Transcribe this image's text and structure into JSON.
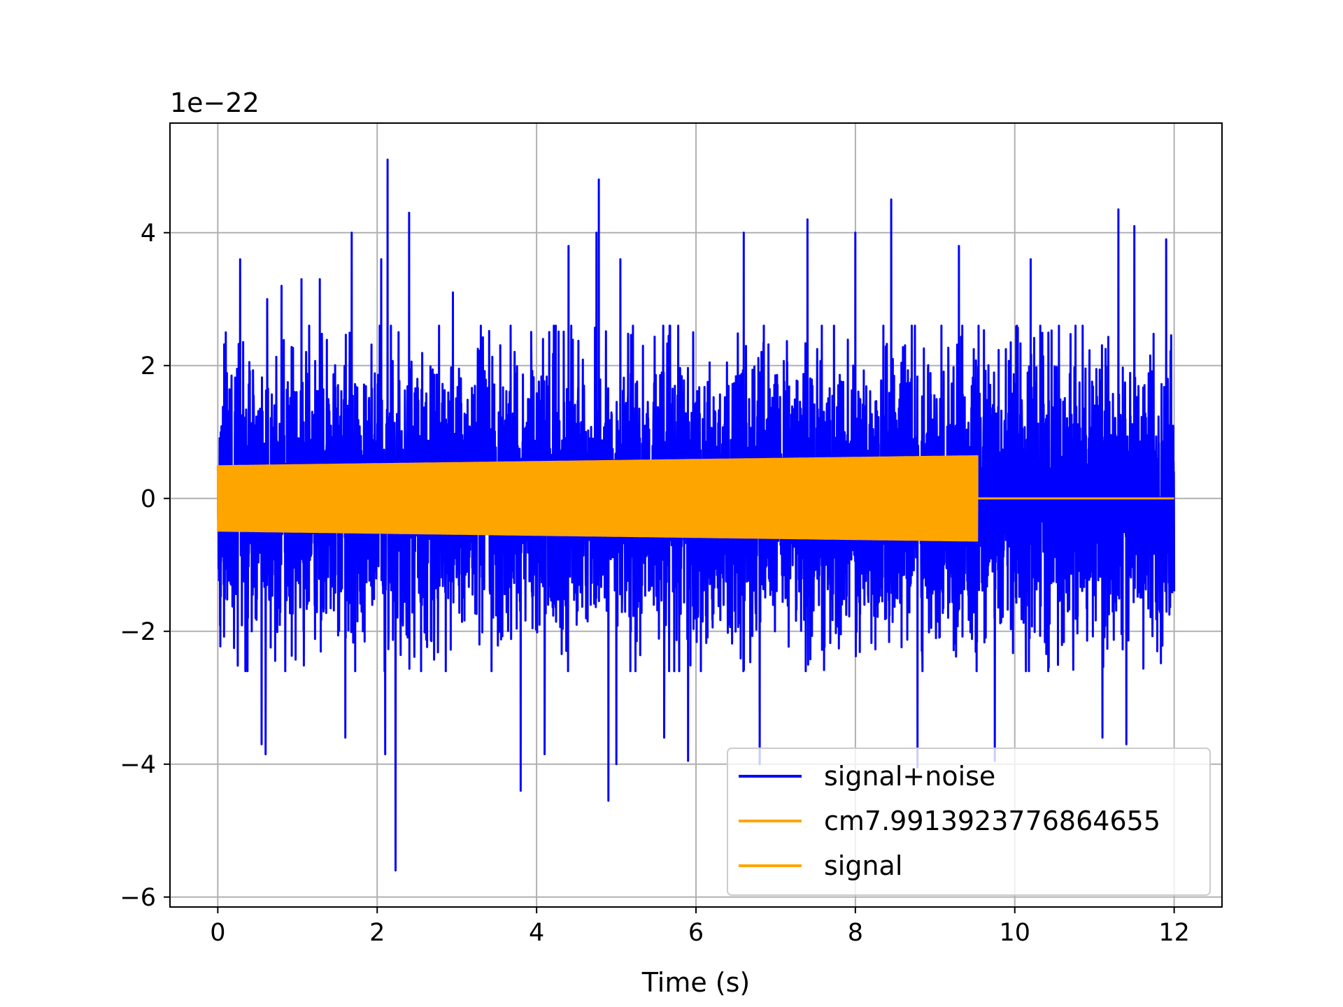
{
  "chart_data": {
    "type": "line",
    "title": "",
    "xlabel": "Time (s)",
    "ylabel": "",
    "y_offset_label": "1e−22",
    "xlim": [
      -0.6,
      12.6
    ],
    "ylim": [
      -6.15,
      5.65
    ],
    "x_ticks": [
      0,
      2,
      4,
      6,
      8,
      10,
      12
    ],
    "x_tick_labels": [
      "0",
      "2",
      "4",
      "6",
      "8",
      "10",
      "12"
    ],
    "y_ticks": [
      -6,
      -4,
      -2,
      0,
      2,
      4
    ],
    "y_tick_labels": [
      "−6",
      "−4",
      "−2",
      "0",
      "2",
      "4"
    ],
    "grid": true,
    "legend_position": "lower right",
    "series": [
      {
        "name": "signal+noise",
        "color": "#0000ff",
        "x_range": [
          0,
          12
        ],
        "noise_std": 1.0,
        "upper_envelope_peaks": [
          {
            "x": 0.1,
            "y": 2.5
          },
          {
            "x": 0.28,
            "y": 3.6
          },
          {
            "x": 0.62,
            "y": 3.0
          },
          {
            "x": 0.8,
            "y": 3.2
          },
          {
            "x": 1.05,
            "y": 3.3
          },
          {
            "x": 1.28,
            "y": 3.3
          },
          {
            "x": 1.68,
            "y": 4.0
          },
          {
            "x": 2.05,
            "y": 3.6
          },
          {
            "x": 2.13,
            "y": 5.1
          },
          {
            "x": 2.4,
            "y": 4.3
          },
          {
            "x": 2.95,
            "y": 3.1
          },
          {
            "x": 3.8,
            "y": 3.5
          },
          {
            "x": 4.4,
            "y": 3.8
          },
          {
            "x": 4.75,
            "y": 4.0
          },
          {
            "x": 4.78,
            "y": 4.8
          },
          {
            "x": 5.05,
            "y": 3.6
          },
          {
            "x": 5.6,
            "y": 3.4
          },
          {
            "x": 6.6,
            "y": 4.0
          },
          {
            "x": 7.4,
            "y": 4.2
          },
          {
            "x": 8.0,
            "y": 4.0
          },
          {
            "x": 8.45,
            "y": 4.5
          },
          {
            "x": 9.3,
            "y": 3.8
          },
          {
            "x": 10.2,
            "y": 3.6
          },
          {
            "x": 11.3,
            "y": 4.35
          },
          {
            "x": 11.5,
            "y": 4.1
          },
          {
            "x": 11.9,
            "y": 3.9
          }
        ],
        "lower_envelope_troughs": [
          {
            "x": 0.55,
            "y": -3.7
          },
          {
            "x": 0.6,
            "y": -3.85
          },
          {
            "x": 1.6,
            "y": -3.6
          },
          {
            "x": 2.1,
            "y": -3.85
          },
          {
            "x": 2.23,
            "y": -5.6
          },
          {
            "x": 3.8,
            "y": -4.4
          },
          {
            "x": 4.1,
            "y": -3.85
          },
          {
            "x": 4.9,
            "y": -4.55
          },
          {
            "x": 5.0,
            "y": -4.0
          },
          {
            "x": 5.6,
            "y": -3.6
          },
          {
            "x": 5.9,
            "y": -3.95
          },
          {
            "x": 6.8,
            "y": -4.0
          },
          {
            "x": 8.78,
            "y": -4.05
          },
          {
            "x": 9.75,
            "y": -3.95
          },
          {
            "x": 11.1,
            "y": -3.6
          },
          {
            "x": 11.4,
            "y": -3.7
          }
        ]
      },
      {
        "name": "cm7.9913923776864655",
        "color": "#ffa500",
        "x_range": [
          0,
          9.53
        ],
        "amplitude_start": 0.5,
        "amplitude_end": 0.65,
        "values_after_end": 0
      },
      {
        "name": "signal",
        "color": "#ffa500",
        "x_range": [
          0,
          12
        ],
        "amplitude_start": 0.5,
        "amplitude_end": 0.65,
        "chirp_end_x": 9.53,
        "values_after_end": 0
      }
    ]
  }
}
